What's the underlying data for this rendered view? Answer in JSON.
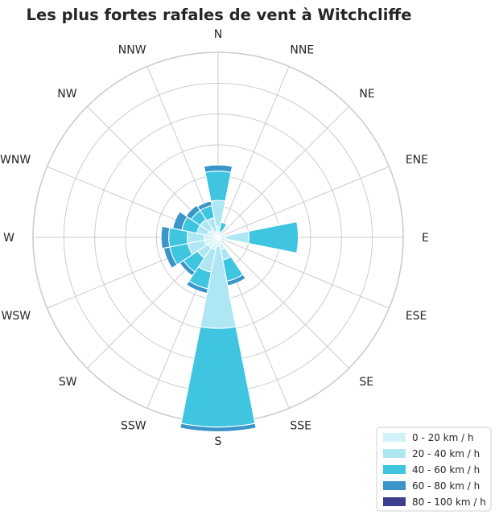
{
  "chart_data": {
    "type": "windrose",
    "title": "Les plus fortes rafales de vent à Witchcliffe",
    "directions": [
      "N",
      "NNE",
      "NE",
      "ENE",
      "E",
      "ESE",
      "SE",
      "SSE",
      "S",
      "SSW",
      "SW",
      "WSW",
      "W",
      "WNW",
      "NW",
      "NNW"
    ],
    "rmax": 12,
    "grid": true,
    "legend_position": "bottom-right",
    "series": [
      {
        "name": "0 - 20 km / h",
        "color": "#d2f2fa",
        "values": [
          0.7,
          0.2,
          0.2,
          0.2,
          0.5,
          0.2,
          0.2,
          0.8,
          0.6,
          0.8,
          0.8,
          0.9,
          0.9,
          0.7,
          0.6,
          0.4
        ]
      },
      {
        "name": "20 - 40 km / h",
        "color": "#aee6f4",
        "values": [
          1.7,
          0.2,
          0.0,
          0.2,
          1.5,
          0.3,
          0.1,
          0.7,
          5.3,
          1.5,
          0.8,
          1.1,
          1.1,
          0.7,
          0.8,
          0.9
        ]
      },
      {
        "name": "40 - 60 km / h",
        "color": "#3fc5e0",
        "values": [
          1.9,
          0.6,
          0.1,
          0.0,
          3.2,
          0.0,
          0.0,
          1.4,
          6.4,
          1.1,
          1.1,
          1.2,
          1.2,
          1.0,
          0.7,
          0.8
        ]
      },
      {
        "name": "60 - 80 km / h",
        "color": "#3a95c9",
        "values": [
          0.4,
          0.0,
          0.0,
          0.0,
          0.0,
          0.0,
          0.0,
          0.3,
          0.3,
          0.3,
          0.3,
          0.4,
          0.5,
          0.6,
          0.4,
          0.3
        ]
      },
      {
        "name": "80 - 100 km / h",
        "color": "#3e3f8c",
        "values": [
          0.0,
          0.0,
          0.0,
          0.0,
          0.0,
          0.0,
          0.0,
          0.0,
          0.0,
          0.0,
          0.0,
          0.0,
          0.0,
          0.0,
          0.0,
          0.0
        ]
      }
    ]
  }
}
